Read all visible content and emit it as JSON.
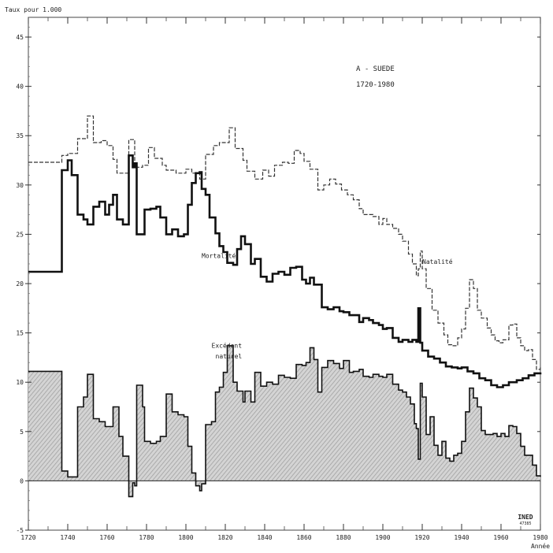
{
  "chart_data": {
    "type": "line",
    "title": "A - SUEDE",
    "subtitle": "1720-1980",
    "ylabel": "Taux pour 1.000",
    "xlabel": "Année",
    "xlim": [
      1720,
      1980
    ],
    "ylim": [
      -5,
      47
    ],
    "x_ticks": [
      "1720",
      "1740",
      "1760",
      "1780",
      "1800",
      "1820",
      "1840",
      "1860",
      "1880",
      "1900",
      "1920",
      "1940",
      "1960",
      "1980"
    ],
    "y_ticks": [
      "-5",
      "0",
      "5",
      "10",
      "15",
      "20",
      "25",
      "30",
      "35",
      "40",
      "45"
    ],
    "grid": false,
    "series": [
      {
        "name": "Natalité",
        "color": "#333333",
        "step": true,
        "points": [
          [
            1720,
            32.3
          ],
          [
            1735,
            32.3
          ],
          [
            1737,
            33
          ],
          [
            1740,
            33.2
          ],
          [
            1745,
            34.7
          ],
          [
            1750,
            37
          ],
          [
            1753,
            34.3
          ],
          [
            1757,
            34.5
          ],
          [
            1760,
            34
          ],
          [
            1763,
            32.6
          ],
          [
            1765,
            31.2
          ],
          [
            1771,
            34.6
          ],
          [
            1774,
            31.8
          ],
          [
            1778,
            32
          ],
          [
            1781,
            33.8
          ],
          [
            1784,
            32.7
          ],
          [
            1788,
            32
          ],
          [
            1790,
            31.5
          ],
          [
            1795,
            31.2
          ],
          [
            1800,
            31.6
          ],
          [
            1803,
            31.2
          ],
          [
            1807,
            30.6
          ],
          [
            1810,
            33.1
          ],
          [
            1814,
            34
          ],
          [
            1817,
            34.3
          ],
          [
            1822,
            35.8
          ],
          [
            1825,
            33.7
          ],
          [
            1829,
            32.5
          ],
          [
            1831,
            31.4
          ],
          [
            1835,
            30.6
          ],
          [
            1839,
            31.5
          ],
          [
            1842,
            30.9
          ],
          [
            1845,
            32
          ],
          [
            1849,
            32.3
          ],
          [
            1852,
            32.2
          ],
          [
            1855,
            33.5
          ],
          [
            1858,
            33.2
          ],
          [
            1860,
            32.4
          ],
          [
            1863,
            31.6
          ],
          [
            1867,
            29.5
          ],
          [
            1870,
            30
          ],
          [
            1873,
            30.6
          ],
          [
            1876,
            30.1
          ],
          [
            1879,
            29.5
          ],
          [
            1882,
            29
          ],
          [
            1885,
            28.5
          ],
          [
            1888,
            27.6
          ],
          [
            1890,
            27
          ],
          [
            1895,
            26.8
          ],
          [
            1898,
            26
          ],
          [
            1900,
            26.6
          ],
          [
            1902,
            26
          ],
          [
            1905,
            25.6
          ],
          [
            1908,
            25
          ],
          [
            1910,
            24.3
          ],
          [
            1913,
            23
          ],
          [
            1915,
            22
          ],
          [
            1917,
            20.8
          ],
          [
            1918,
            21.5
          ],
          [
            1919,
            23.3
          ],
          [
            1920,
            21.5
          ],
          [
            1922,
            19.5
          ],
          [
            1925,
            17.3
          ],
          [
            1928,
            16
          ],
          [
            1931,
            14.8
          ],
          [
            1933,
            13.8
          ],
          [
            1935,
            13.7
          ],
          [
            1938,
            14.5
          ],
          [
            1940,
            15.4
          ],
          [
            1942,
            17.5
          ],
          [
            1944,
            20.4
          ],
          [
            1946,
            19.5
          ],
          [
            1948,
            17.3
          ],
          [
            1950,
            16.5
          ],
          [
            1953,
            15.5
          ],
          [
            1955,
            14.8
          ],
          [
            1957,
            14.2
          ],
          [
            1959,
            14
          ],
          [
            1961,
            14.3
          ],
          [
            1964,
            15.8
          ],
          [
            1966,
            15.9
          ],
          [
            1968,
            14.5
          ],
          [
            1970,
            13.7
          ],
          [
            1972,
            13.2
          ],
          [
            1974,
            13.3
          ],
          [
            1976,
            12.3
          ],
          [
            1978,
            11.3
          ],
          [
            1980,
            11.5
          ]
        ]
      },
      {
        "name": "Mortalité",
        "color": "#111111",
        "step": true,
        "points": [
          [
            1720,
            21.2
          ],
          [
            1735,
            21.2
          ],
          [
            1737,
            31.5
          ],
          [
            1740,
            32.5
          ],
          [
            1742,
            31
          ],
          [
            1745,
            27
          ],
          [
            1748,
            26.5
          ],
          [
            1750,
            26
          ],
          [
            1753,
            27.8
          ],
          [
            1756,
            28.3
          ],
          [
            1759,
            27
          ],
          [
            1761,
            28
          ],
          [
            1763,
            29
          ],
          [
            1765,
            26.5
          ],
          [
            1768,
            26
          ],
          [
            1771,
            33
          ],
          [
            1773,
            31.8
          ],
          [
            1774,
            32.2
          ],
          [
            1775,
            25
          ],
          [
            1778,
            25
          ],
          [
            1779,
            27.5
          ],
          [
            1782,
            27.6
          ],
          [
            1785,
            27.8
          ],
          [
            1787,
            26.7
          ],
          [
            1790,
            25
          ],
          [
            1793,
            25.5
          ],
          [
            1796,
            24.8
          ],
          [
            1799,
            25
          ],
          [
            1801,
            28
          ],
          [
            1803,
            30.2
          ],
          [
            1805,
            31.2
          ],
          [
            1807,
            31.3
          ],
          [
            1808,
            29.6
          ],
          [
            1810,
            29
          ],
          [
            1812,
            26.7
          ],
          [
            1815,
            25.1
          ],
          [
            1817,
            23.8
          ],
          [
            1819,
            23.2
          ],
          [
            1821,
            22.1
          ],
          [
            1824,
            21.9
          ],
          [
            1826,
            23.5
          ],
          [
            1828,
            24.8
          ],
          [
            1830,
            24
          ],
          [
            1833,
            22
          ],
          [
            1835,
            22.5
          ],
          [
            1838,
            20.7
          ],
          [
            1841,
            20.2
          ],
          [
            1844,
            21
          ],
          [
            1847,
            21.2
          ],
          [
            1850,
            20.9
          ],
          [
            1853,
            21.6
          ],
          [
            1856,
            21.7
          ],
          [
            1859,
            20.4
          ],
          [
            1861,
            20
          ],
          [
            1863,
            20.6
          ],
          [
            1865,
            19.9
          ],
          [
            1867,
            19.9
          ],
          [
            1869,
            17.6
          ],
          [
            1872,
            17.4
          ],
          [
            1875,
            17.6
          ],
          [
            1878,
            17.2
          ],
          [
            1880,
            17.1
          ],
          [
            1883,
            16.8
          ],
          [
            1885,
            16.8
          ],
          [
            1888,
            16.1
          ],
          [
            1890,
            16.5
          ],
          [
            1893,
            16.3
          ],
          [
            1895,
            16
          ],
          [
            1898,
            15.8
          ],
          [
            1900,
            15.4
          ],
          [
            1902,
            15.5
          ],
          [
            1905,
            14.5
          ],
          [
            1908,
            14.1
          ],
          [
            1910,
            14.3
          ],
          [
            1913,
            14.1
          ],
          [
            1915,
            14.3
          ],
          [
            1917,
            14.1
          ],
          [
            1918,
            17.5
          ],
          [
            1919,
            14
          ],
          [
            1920,
            13.2
          ],
          [
            1923,
            12.6
          ],
          [
            1926,
            12.4
          ],
          [
            1929,
            12
          ],
          [
            1932,
            11.6
          ],
          [
            1935,
            11.5
          ],
          [
            1938,
            11.4
          ],
          [
            1940,
            11.5
          ],
          [
            1943,
            11.1
          ],
          [
            1946,
            10.9
          ],
          [
            1949,
            10.4
          ],
          [
            1952,
            10.2
          ],
          [
            1955,
            9.7
          ],
          [
            1958,
            9.5
          ],
          [
            1961,
            9.7
          ],
          [
            1964,
            10
          ],
          [
            1966,
            10
          ],
          [
            1968,
            10.2
          ],
          [
            1971,
            10.4
          ],
          [
            1974,
            10.7
          ],
          [
            1977,
            10.9
          ],
          [
            1980,
            11
          ]
        ]
      },
      {
        "name": "Excédent naturel",
        "color": "#111111",
        "fill": "#bdbdbd",
        "step": true,
        "points": [
          [
            1720,
            11.1
          ],
          [
            1735,
            11.1
          ],
          [
            1737,
            1
          ],
          [
            1740,
            0.4
          ],
          [
            1745,
            7.5
          ],
          [
            1748,
            8.5
          ],
          [
            1750,
            10.8
          ],
          [
            1753,
            6.3
          ],
          [
            1756,
            6
          ],
          [
            1759,
            5.5
          ],
          [
            1761,
            5.5
          ],
          [
            1763,
            7.5
          ],
          [
            1766,
            4.5
          ],
          [
            1768,
            2.5
          ],
          [
            1771,
            -1.6
          ],
          [
            1773,
            -0.2
          ],
          [
            1774,
            -0.5
          ],
          [
            1775,
            9.7
          ],
          [
            1778,
            7.5
          ],
          [
            1779,
            4
          ],
          [
            1782,
            3.8
          ],
          [
            1785,
            4
          ],
          [
            1787,
            4.5
          ],
          [
            1790,
            8.8
          ],
          [
            1793,
            7
          ],
          [
            1796,
            6.7
          ],
          [
            1799,
            6.5
          ],
          [
            1801,
            3.5
          ],
          [
            1803,
            0.8
          ],
          [
            1805,
            -0.5
          ],
          [
            1807,
            -1
          ],
          [
            1808,
            -0.3
          ],
          [
            1810,
            5.7
          ],
          [
            1813,
            6
          ],
          [
            1815,
            9
          ],
          [
            1817,
            9.5
          ],
          [
            1819,
            11
          ],
          [
            1821,
            13.7
          ],
          [
            1824,
            10
          ],
          [
            1826,
            9.1
          ],
          [
            1829,
            8
          ],
          [
            1830,
            9.1
          ],
          [
            1833,
            8
          ],
          [
            1835,
            11
          ],
          [
            1838,
            9.6
          ],
          [
            1841,
            10
          ],
          [
            1844,
            9.8
          ],
          [
            1847,
            10.7
          ],
          [
            1850,
            10.5
          ],
          [
            1853,
            10.4
          ],
          [
            1856,
            11.8
          ],
          [
            1859,
            11.7
          ],
          [
            1861,
            12
          ],
          [
            1863,
            13.5
          ],
          [
            1865,
            12.3
          ],
          [
            1867,
            9
          ],
          [
            1869,
            11.5
          ],
          [
            1872,
            12.2
          ],
          [
            1875,
            11.9
          ],
          [
            1878,
            11.4
          ],
          [
            1880,
            12.2
          ],
          [
            1883,
            11
          ],
          [
            1885,
            11.1
          ],
          [
            1888,
            11.3
          ],
          [
            1890,
            10.6
          ],
          [
            1893,
            10.5
          ],
          [
            1895,
            10.8
          ],
          [
            1898,
            10.6
          ],
          [
            1900,
            10.5
          ],
          [
            1902,
            10.8
          ],
          [
            1905,
            9.8
          ],
          [
            1908,
            9.2
          ],
          [
            1910,
            9
          ],
          [
            1912,
            8.5
          ],
          [
            1914,
            7.8
          ],
          [
            1915,
            7.8
          ],
          [
            1916,
            5.8
          ],
          [
            1917,
            5.3
          ],
          [
            1918,
            2.2
          ],
          [
            1919,
            9.9
          ],
          [
            1920,
            8.5
          ],
          [
            1922,
            4.7
          ],
          [
            1924,
            6.5
          ],
          [
            1926,
            3.6
          ],
          [
            1928,
            2.6
          ],
          [
            1930,
            4
          ],
          [
            1932,
            2.3
          ],
          [
            1934,
            2
          ],
          [
            1936,
            2.6
          ],
          [
            1938,
            2.8
          ],
          [
            1940,
            4
          ],
          [
            1942,
            7
          ],
          [
            1944,
            9.4
          ],
          [
            1946,
            8.4
          ],
          [
            1948,
            7.5
          ],
          [
            1950,
            5.1
          ],
          [
            1952,
            4.7
          ],
          [
            1954,
            4.7
          ],
          [
            1956,
            4.8
          ],
          [
            1958,
            4.5
          ],
          [
            1960,
            4.8
          ],
          [
            1962,
            4.5
          ],
          [
            1964,
            5.6
          ],
          [
            1966,
            5.5
          ],
          [
            1968,
            4.8
          ],
          [
            1970,
            3.5
          ],
          [
            1972,
            2.6
          ],
          [
            1974,
            2.6
          ],
          [
            1976,
            1.6
          ],
          [
            1978,
            0.5
          ],
          [
            1980,
            0.4
          ]
        ]
      }
    ],
    "annotations": [
      {
        "text": "Mortalité",
        "x": 1808,
        "y": 22.6
      },
      {
        "text": "Natalité",
        "x": 1920,
        "y": 22
      },
      {
        "text": "Excédent",
        "x": 1813,
        "y": 13.5
      },
      {
        "text": "naturel",
        "x": 1815,
        "y": 12.4
      }
    ]
  },
  "logo": {
    "text": "INED",
    "number": "47385"
  }
}
